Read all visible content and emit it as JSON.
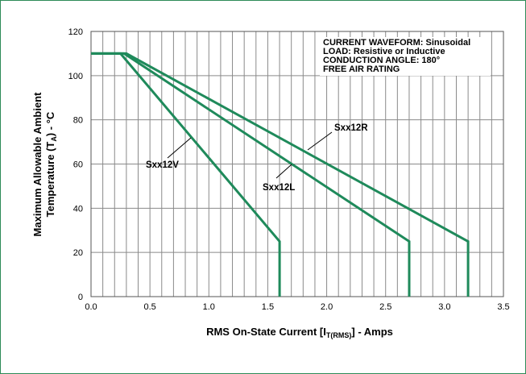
{
  "chart_data": {
    "type": "line",
    "xlabel": "RMS On-State Current [I",
    "xlabel_sub": "T(RMS)",
    "xlabel_suffix": "] - Amps",
    "ylabel_line1": "Maximum Allowable Ambient",
    "ylabel_line2": "Temperature (T",
    "ylabel_sub": "A",
    "ylabel_suffix": ") - °C",
    "xlim": [
      0,
      3.5
    ],
    "ylim": [
      0,
      120
    ],
    "x_ticks": [
      "0.0",
      "0.5",
      "1.0",
      "1.5",
      "2.0",
      "2.5",
      "3.0",
      "3.5"
    ],
    "y_ticks": [
      "0",
      "20",
      "40",
      "60",
      "80",
      "100",
      "120"
    ],
    "grid": "on",
    "annotation_lines": [
      "CURRENT WAVEFORM: Sinusoidal",
      "LOAD: Resistive or Inductive",
      "CONDUCTION ANGLE: 180°",
      "FREE AIR RATING"
    ],
    "series": [
      {
        "name": "Sxx12V",
        "points": [
          [
            0.0,
            110
          ],
          [
            0.25,
            110
          ],
          [
            1.6,
            25
          ],
          [
            1.6,
            0
          ]
        ]
      },
      {
        "name": "Sxx12L",
        "points": [
          [
            0.0,
            110
          ],
          [
            0.28,
            110
          ],
          [
            2.7,
            25
          ],
          [
            2.7,
            0
          ]
        ]
      },
      {
        "name": "Sxx12R",
        "points": [
          [
            0.0,
            110
          ],
          [
            0.3,
            110
          ],
          [
            3.2,
            25
          ],
          [
            3.2,
            0
          ]
        ]
      }
    ],
    "colors": {
      "series": "#1f8a5b",
      "grid": "#8a8a8a",
      "frame": "#2e8b57"
    }
  }
}
